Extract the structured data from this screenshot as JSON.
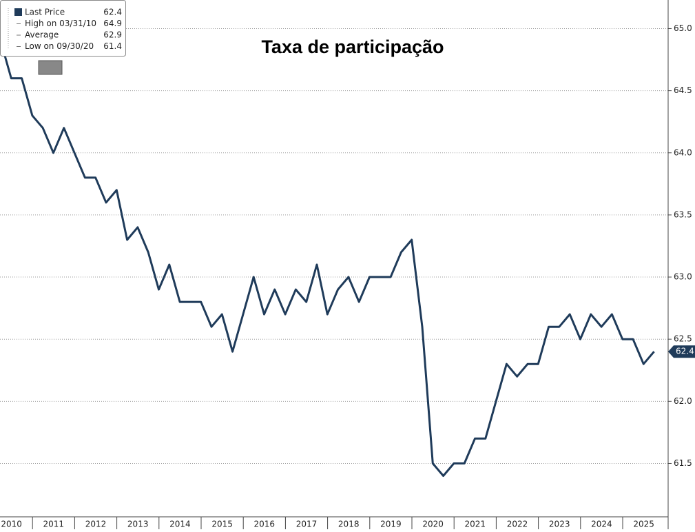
{
  "chart_data": {
    "type": "line",
    "title": "Taxa de participação",
    "categories": [
      null,
      null,
      null,
      null,
      null,
      null,
      null,
      null,
      null,
      null,
      null,
      null,
      null,
      null,
      null,
      null,
      null,
      null,
      null,
      null,
      null,
      null,
      null,
      null,
      null,
      null,
      null,
      null,
      null,
      null,
      null,
      null,
      null,
      null,
      null,
      null,
      null,
      null,
      null,
      null,
      null,
      null,
      null,
      null,
      null,
      null,
      null,
      null,
      null,
      null,
      null,
      null,
      null,
      null,
      null,
      null,
      null,
      null,
      null,
      null,
      null,
      null,
      null
    ],
    "x_labels": [
      "2010",
      "2011",
      "2012",
      "2013",
      "2014",
      "2015",
      "2016",
      "2017",
      "2018",
      "2019",
      "2020",
      "2021",
      "2022",
      "2023",
      "2024",
      "2025"
    ],
    "series": [
      {
        "name": "Last Price",
        "color": "#1f3b5a",
        "values": [
          64.9,
          64.6,
          64.6,
          64.3,
          64.2,
          64.0,
          64.2,
          64.0,
          63.8,
          63.8,
          63.6,
          63.7,
          63.3,
          63.4,
          63.2,
          62.9,
          63.1,
          62.8,
          62.8,
          62.8,
          62.6,
          62.7,
          62.4,
          62.7,
          63.0,
          62.7,
          62.9,
          62.7,
          62.9,
          62.8,
          63.1,
          62.7,
          62.9,
          63.0,
          62.8,
          63.0,
          63.0,
          63.0,
          63.2,
          63.3,
          62.6,
          61.5,
          61.4,
          61.5,
          61.5,
          61.7,
          61.7,
          62.0,
          62.3,
          62.2,
          62.3,
          62.3,
          62.6,
          62.6,
          62.7,
          62.5,
          62.7,
          62.6,
          62.7,
          62.5,
          62.5,
          62.3,
          62.4
        ]
      }
    ],
    "legend": [
      {
        "label": "Last Price",
        "value": 62.4
      },
      {
        "label": "High on 03/31/10",
        "value": 64.9
      },
      {
        "label": "Average",
        "value": 62.9
      },
      {
        "label": "Low on 09/30/20",
        "value": 61.4
      }
    ],
    "ylim": [
      61.07,
      65.23
    ],
    "yticks": [
      {
        "value": 61.5,
        "label": "61.5"
      },
      {
        "value": 62,
        "label": "62.0"
      },
      {
        "value": 62.5,
        "label": "62.5"
      },
      {
        "value": 63,
        "label": "63.0"
      },
      {
        "value": 63.5,
        "label": "63.5"
      },
      {
        "value": 64,
        "label": "64.0"
      },
      {
        "value": 64.5,
        "label": "64.5"
      },
      {
        "value": 65,
        "label": "65.0"
      }
    ],
    "grid": true
  }
}
